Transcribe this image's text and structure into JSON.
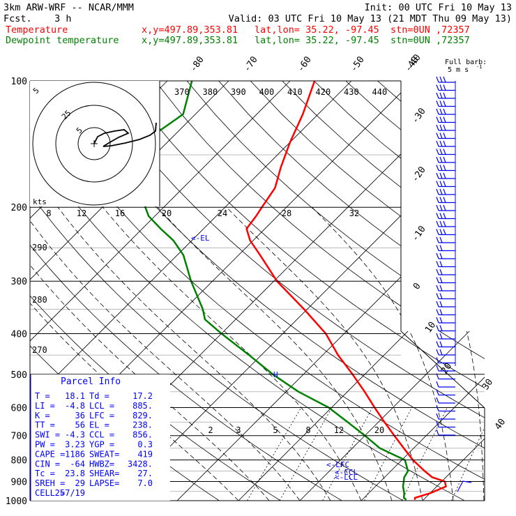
{
  "header": {
    "title": "3km ARW-WRF -- NCAR/MMM",
    "init": "Init: 00 UTC Fri 10 May 13",
    "fcst": "Fcst.    3 h",
    "valid": "Valid: 03 UTC Fri 10 May 13 (21 MDT Thu 09 May 13)",
    "temp_label": "Temperature",
    "dew_label": "Dewpoint temperature",
    "xy": "x,y=497.89,353.81",
    "latlon": "lat,lon= 35.22, -97.45",
    "stn": "stn=0UN ,72357",
    "temp_color": "#ff0000",
    "dew_color": "#008000",
    "barb_label_1": "Full barb:",
    "barb_label_2": "5 m s",
    "barb_exp": "-1"
  },
  "parcel_info": {
    "title": "Parcel Info",
    "rows": [
      [
        "T  =",
        "18.1",
        "Td =",
        "17.2"
      ],
      [
        "LI =",
        "-4.8",
        "LCL =",
        "885."
      ],
      [
        "K  =",
        "36",
        "LFC =",
        "829."
      ],
      [
        "TT =",
        "56",
        "EL  =",
        "238."
      ],
      [
        "SWI =",
        "-4.3",
        "CCL =",
        "856."
      ],
      [
        "PW =",
        "3.23",
        "YGP =",
        "0.3"
      ],
      [
        "CAPE =",
        "1186",
        "SWEAT=",
        "419"
      ],
      [
        "CIN =",
        "-64",
        "HWBZ=",
        "3428."
      ],
      [
        "Tc =",
        "23.8",
        "SHEAR=",
        "27."
      ],
      [
        "SREH =",
        "29",
        "LAPSE=",
        "7.0"
      ],
      [
        "CELL =",
        "257/19",
        "",
        ""
      ]
    ]
  },
  "chart_data": {
    "type": "line",
    "title": "",
    "y_axis": {
      "quantity": "pressure",
      "scale": "log",
      "ylim": [
        1000,
        100
      ],
      "ticks": [
        "100",
        "200",
        "300",
        "400",
        "500",
        "600",
        "700",
        "800",
        "900",
        "1000"
      ]
    },
    "isotherm_labels": [
      "-40",
      "-30",
      "-20",
      "-10",
      "0",
      "10",
      "20",
      "30",
      "40"
    ],
    "upper_isotherm_labels": [
      "-80",
      "-70",
      "-60",
      "-50",
      "-40"
    ],
    "theta_labels": [
      "370",
      "380",
      "390",
      "400",
      "410",
      "420",
      "430",
      "440"
    ],
    "theta_left_labels": [
      "290",
      "280",
      "270"
    ],
    "mixing_ratio_labels": [
      "2",
      "3",
      "5",
      "8",
      "12",
      "20"
    ],
    "hodograph": {
      "scale_labels": [
        "5",
        "25"
      ],
      "speed_unit": "kts",
      "axis_ticks": [
        "8",
        "12",
        "16",
        "20",
        "24",
        "28",
        "32"
      ]
    },
    "level_markers": [
      "<-LFC",
      "<-CCL",
      "<-LCL",
      "<-EL"
    ],
    "series": [
      {
        "name": "Temperature",
        "color": "#ff0000",
        "p": [
          995,
          985,
          960,
          925,
          900,
          880,
          850,
          800,
          750,
          700,
          650,
          600,
          550,
          500,
          450,
          400,
          350,
          300,
          260,
          240,
          225,
          210,
          200,
          180,
          160,
          140,
          120,
          100
        ],
        "t": [
          18.6,
          18.3,
          20.0,
          21.5,
          20.5,
          17.8,
          15.5,
          11.8,
          8.4,
          4.8,
          1.0,
          -3.0,
          -7.2,
          -12.0,
          -17.5,
          -23.0,
          -30.5,
          -39.5,
          -46.5,
          -50.5,
          -53.0,
          -53.5,
          -54.0,
          -55.0,
          -57.5,
          -60.0,
          -62.5,
          -66.0
        ]
      },
      {
        "name": "Dewpoint temperature",
        "color": "#008000",
        "p": [
          995,
          985,
          960,
          925,
          900,
          880,
          850,
          800,
          750,
          700,
          650,
          600,
          550,
          500,
          450,
          400,
          370,
          350,
          300,
          260,
          240,
          225,
          210,
          200,
          180,
          160,
          140,
          130,
          120,
          100
        ],
        "t": [
          17.2,
          16.5,
          15.8,
          14.5,
          13.8,
          13.2,
          12.8,
          10.5,
          4.5,
          0.0,
          -5.0,
          -10.5,
          -18.0,
          -25.0,
          -32.0,
          -40.0,
          -45.0,
          -47.0,
          -53.5,
          -59.0,
          -63.0,
          -67.0,
          -71.0,
          -73.0,
          -76.5,
          -81.0,
          -84.0,
          -83.0,
          -82.0,
          -86.0
        ]
      }
    ]
  }
}
